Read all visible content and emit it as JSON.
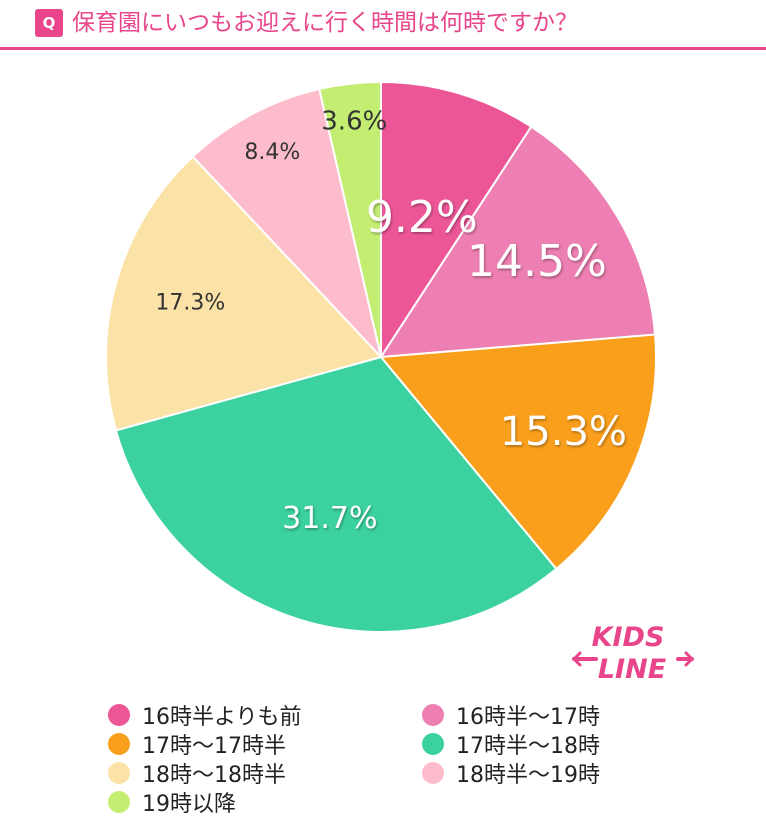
{
  "header": {
    "badge": "Q",
    "title": "保育園にいつもお迎えに行く時間は何時ですか？"
  },
  "logo": {
    "line1": "KIDS",
    "line2": "LINE"
  },
  "colors": {
    "title": "#e8458b",
    "label_light": "#ffffff",
    "label_dark": "#333333"
  },
  "chart_data": {
    "type": "pie",
    "start_angle_deg": 0,
    "direction": "clockwise",
    "slices": [
      {
        "label": "16時半よりも前",
        "value": 9.2,
        "display": "9.2%",
        "color": "#ec5697"
      },
      {
        "label": "16時半～17時",
        "value": 14.5,
        "display": "14.5%",
        "color": "#ee7fb2"
      },
      {
        "label": "17時～17時半",
        "value": 15.3,
        "display": "15.3%",
        "color": "#fa9f1c"
      },
      {
        "label": "17時半～18時",
        "value": 31.7,
        "display": "31.7%",
        "color": "#3bd1a0"
      },
      {
        "label": "18時～18時半",
        "value": 17.3,
        "display": "17.3%",
        "color": "#fbe2a6"
      },
      {
        "label": "18時半～19時",
        "value": 8.4,
        "display": "8.4%",
        "color": "#fdbccc"
      },
      {
        "label": "19時以降",
        "value": 3.6,
        "display": "3.6%",
        "color": "#c3ee72"
      }
    ]
  }
}
